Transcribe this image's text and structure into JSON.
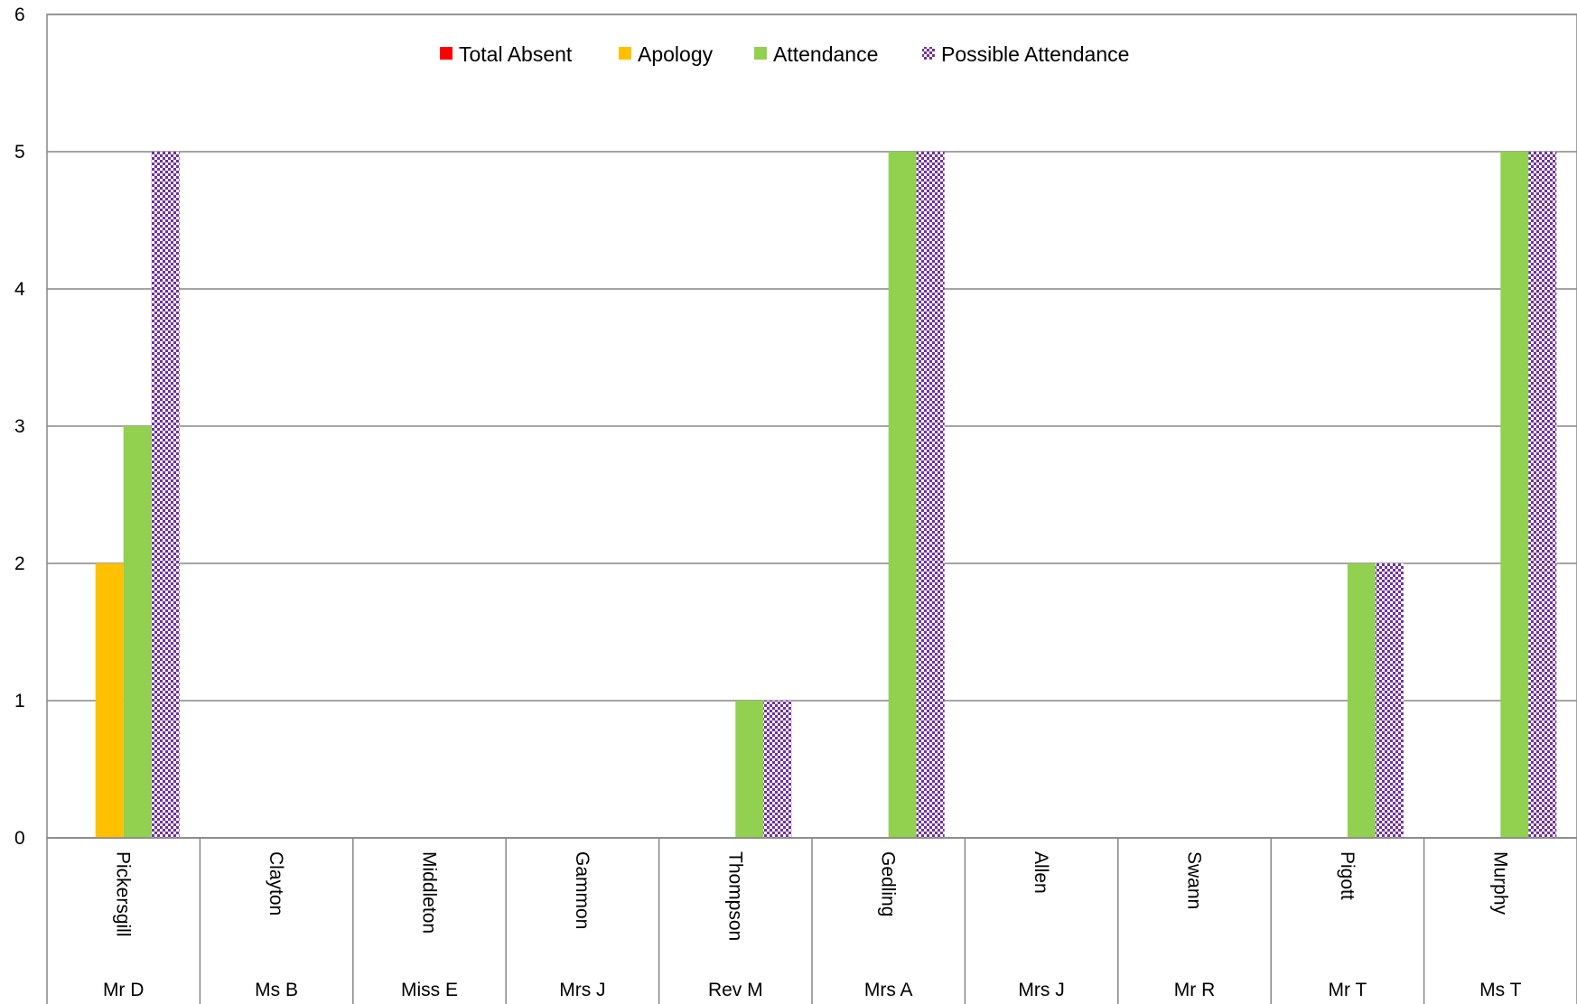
{
  "chart_data": {
    "type": "bar",
    "categories": [
      {
        "surname": "Pickersgill",
        "title": "Mr D"
      },
      {
        "surname": "Clayton",
        "title": "Ms B"
      },
      {
        "surname": "Middleton",
        "title": "Miss E"
      },
      {
        "surname": "Gammon",
        "title": "Mrs J"
      },
      {
        "surname": "Thompson",
        "title": "Rev M"
      },
      {
        "surname": "Gedling",
        "title": "Mrs A"
      },
      {
        "surname": "Allen",
        "title": "Mrs J"
      },
      {
        "surname": "Swann",
        "title": "Mr R"
      },
      {
        "surname": "Pigott",
        "title": "Mr T"
      },
      {
        "surname": "Murphy",
        "title": "Ms T"
      }
    ],
    "series": [
      {
        "name": "Total Absent",
        "color": "#ff0000",
        "pattern": "solid",
        "values": [
          0,
          0,
          0,
          0,
          0,
          0,
          0,
          0,
          0,
          0
        ]
      },
      {
        "name": "Apology",
        "color": "#ffc000",
        "pattern": "solid",
        "values": [
          2,
          0,
          0,
          0,
          0,
          0,
          0,
          0,
          0,
          0
        ]
      },
      {
        "name": "Attendance",
        "color": "#92d050",
        "pattern": "solid",
        "values": [
          3,
          0,
          0,
          0,
          1,
          5,
          0,
          0,
          2,
          5
        ]
      },
      {
        "name": "Possible Attendance",
        "color": "#7030a0",
        "pattern": "checker",
        "values": [
          5,
          0,
          0,
          0,
          1,
          5,
          0,
          0,
          2,
          5
        ]
      }
    ],
    "ylim": [
      0,
      6
    ],
    "yticks": [
      "0",
      "1",
      "2",
      "3",
      "4",
      "5",
      "6"
    ],
    "grid": true,
    "legend_position": "top-center"
  }
}
